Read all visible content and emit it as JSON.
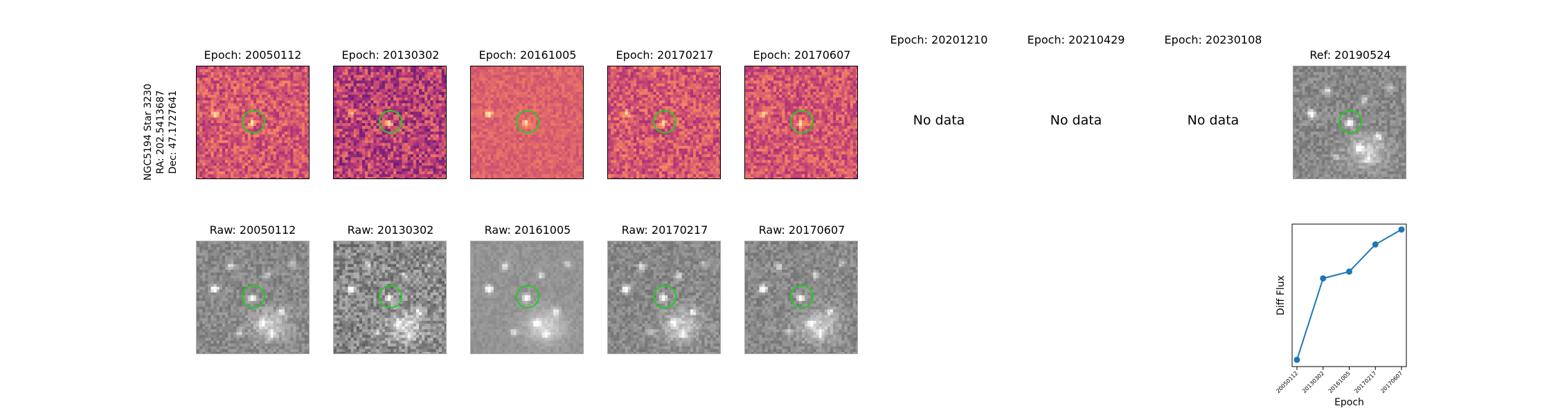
{
  "target": {
    "lines": [
      "NGC5194 Star 3230",
      "RA: 202.5413687",
      "Dec: 47.1727641"
    ]
  },
  "diff_row": [
    {
      "title": "Epoch: 20050112",
      "has_data": true,
      "palette": "magma"
    },
    {
      "title": "Epoch: 20130302",
      "has_data": true,
      "palette": "magma-dark"
    },
    {
      "title": "Epoch: 20161005",
      "has_data": true,
      "palette": "magma-smooth"
    },
    {
      "title": "Epoch: 20170217",
      "has_data": true,
      "palette": "magma"
    },
    {
      "title": "Epoch: 20170607",
      "has_data": true,
      "palette": "magma"
    },
    {
      "title": "Epoch: 20201210",
      "has_data": false,
      "no_data_label": "No data"
    },
    {
      "title": "Epoch: 20210429",
      "has_data": false,
      "no_data_label": "No data"
    },
    {
      "title": "Epoch: 20230108",
      "has_data": false,
      "no_data_label": "No data"
    },
    {
      "title": "Ref: 20190524",
      "has_data": true,
      "palette": "gray"
    }
  ],
  "raw_row": [
    {
      "title": "Raw: 20050112"
    },
    {
      "title": "Raw: 20130302"
    },
    {
      "title": "Raw: 20161005"
    },
    {
      "title": "Raw: 20170217"
    },
    {
      "title": "Raw: 20170607"
    }
  ],
  "colors": {
    "marker_circle": "#22cc22",
    "line": "#1f77b4"
  },
  "chart_data": {
    "type": "line",
    "x": [
      "20050112",
      "20130302",
      "20161005",
      "20170217",
      "20170607"
    ],
    "values": [
      0.0,
      0.6,
      0.65,
      0.85,
      0.96
    ],
    "xlabel": "Epoch",
    "ylabel": "Diff Flux",
    "ylim": [
      -0.05,
      1.0
    ],
    "grid": false,
    "y_ticks_shown": false
  }
}
